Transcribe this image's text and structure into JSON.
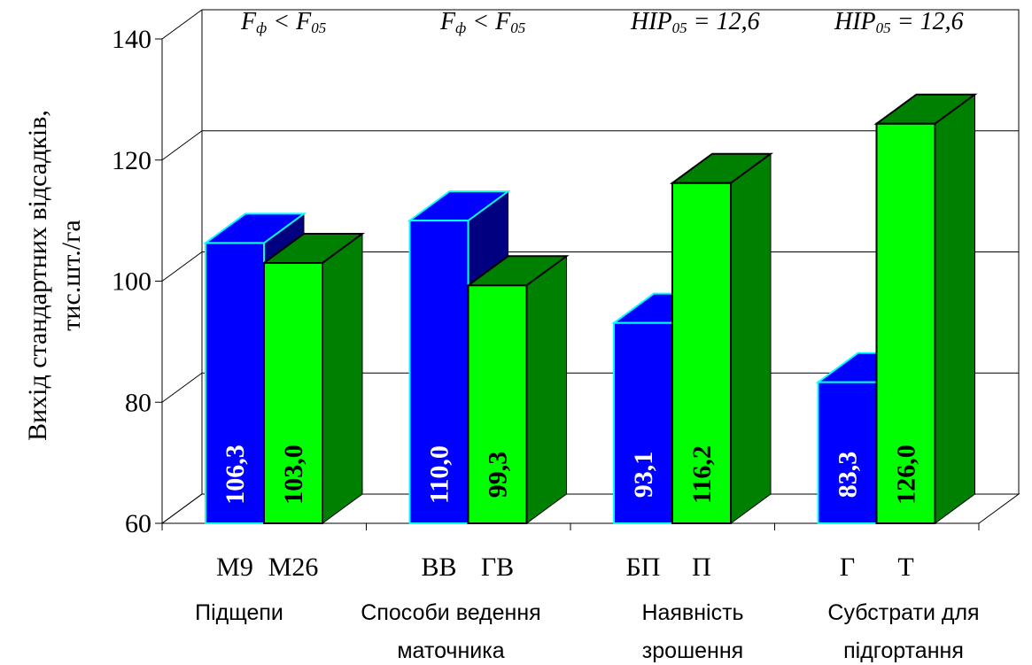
{
  "chart_data": {
    "type": "bar",
    "style": "3d-clustered",
    "ylabel_lines": [
      "Вихід стандартних відсадків,",
      "тис.шт./га"
    ],
    "ylim": [
      60,
      140
    ],
    "yticks": [
      "60",
      "80",
      "100",
      "120",
      "140"
    ],
    "grid": true,
    "colors": {
      "first": "#0000ff",
      "second": "#00ff00",
      "first_dark": "#000080",
      "second_dark": "#008000",
      "first_edge": "#00ffff"
    },
    "groups": [
      {
        "label_lines": [
          "Підщепи"
        ],
        "stat": {
          "base": "F",
          "base_sub": "ф",
          "op": "<",
          "rhs": "F",
          "rhs_sub": "05"
        },
        "bars": [
          {
            "category": "М9",
            "value": 106.3,
            "label": "106,3",
            "series": "first"
          },
          {
            "category": "М26",
            "value": 103.0,
            "label": "103,0",
            "series": "second"
          }
        ]
      },
      {
        "label_lines": [
          "Способи ведення",
          "маточника"
        ],
        "stat": {
          "base": "F",
          "base_sub": "ф",
          "op": "<",
          "rhs": "F",
          "rhs_sub": "05"
        },
        "bars": [
          {
            "category": "ВВ",
            "value": 110.0,
            "label": "110,0",
            "series": "first"
          },
          {
            "category": "ГВ",
            "value": 99.3,
            "label": "99,3",
            "series": "second"
          }
        ]
      },
      {
        "label_lines": [
          "Наявність",
          "зрошення"
        ],
        "stat": {
          "base": "HIP",
          "base_sub": "05",
          "op": "=",
          "rhs": "12,6",
          "rhs_sub": ""
        },
        "bars": [
          {
            "category": "БП",
            "value": 93.1,
            "label": "93,1",
            "series": "first"
          },
          {
            "category": "П",
            "value": 116.2,
            "label": "116,2",
            "series": "second"
          }
        ]
      },
      {
        "label_lines": [
          "Субстрати для",
          "підгортання"
        ],
        "stat": {
          "base": "HIP",
          "base_sub": "05",
          "op": "=",
          "rhs": "12,6",
          "rhs_sub": ""
        },
        "bars": [
          {
            "category": "Г",
            "value": 83.3,
            "label": "83,3",
            "series": "first"
          },
          {
            "category": "Т",
            "value": 126.0,
            "label": "126,0",
            "series": "second"
          }
        ]
      }
    ]
  }
}
